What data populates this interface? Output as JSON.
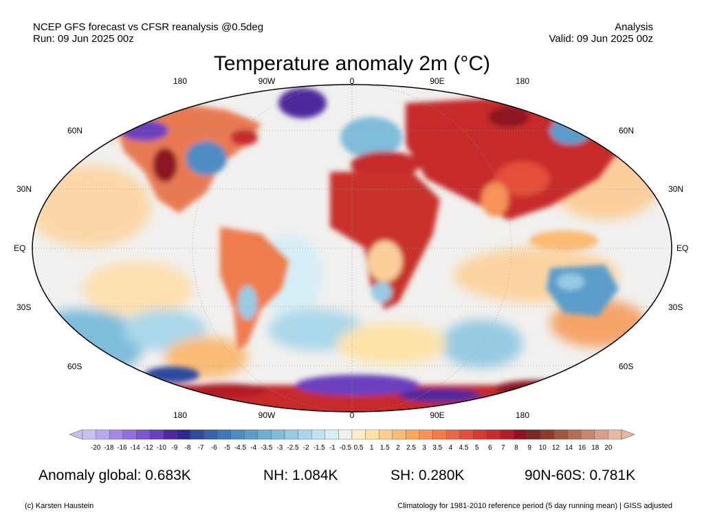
{
  "header": {
    "source": "NCEP GFS forecast vs CFSR reanalysis @0.5deg",
    "run": "Run: 09 Jun 2025 00z",
    "kind": "Analysis",
    "valid": "Valid: 09 Jun 2025 00z"
  },
  "title": "Temperature anomaly 2m (°C)",
  "axes": {
    "top_lon": [
      "180",
      "90W",
      "0",
      "90E",
      "180"
    ],
    "bottom_lon": [
      "180",
      "90W",
      "0",
      "90E",
      "180"
    ],
    "left_lat": [
      "60N",
      "30N",
      "EQ",
      "30S",
      "60S"
    ],
    "right_lat": [
      "60N",
      "30N",
      "EQ",
      "30S",
      "60S"
    ]
  },
  "colorbar": {
    "labels": [
      "-20",
      "-18",
      "-16",
      "-14",
      "-12",
      "-10",
      "-9",
      "-8",
      "-7",
      "-6",
      "-5",
      "-4.5",
      "-4",
      "-3.5",
      "-3",
      "-2.5",
      "-2",
      "-1.5",
      "-1",
      "-0.5",
      "0.5",
      "1",
      "1.5",
      "2",
      "2.5",
      "3",
      "3.5",
      "4",
      "4.5",
      "5",
      "6",
      "7",
      "8",
      "9",
      "10",
      "12",
      "14",
      "16",
      "18",
      "20"
    ],
    "colors": [
      "#c7c2f2",
      "#b8a9ee",
      "#a48ae6",
      "#9070dc",
      "#7c56cf",
      "#6a3fbf",
      "#4e2a9c",
      "#2c2a8c",
      "#2f4a9c",
      "#3762ad",
      "#3f78b9",
      "#4d8cc3",
      "#5a9dcb",
      "#6aaed3",
      "#7fbddb",
      "#96cbe3",
      "#aad7ea",
      "#bfe3f0",
      "#d6eef6",
      "#f0f0f0",
      "#fdf0c8",
      "#fde3a8",
      "#fcd08c",
      "#fbbb74",
      "#f9a862",
      "#f69356",
      "#f27d4b",
      "#ec6642",
      "#e34f3a",
      "#d53b32",
      "#c62c2c",
      "#b01f26",
      "#8d1420",
      "#7a2a20",
      "#8e3b2c",
      "#a0553f",
      "#b56e55",
      "#c8876b",
      "#d89f85",
      "#e8b8a0"
    ]
  },
  "stats": {
    "global": "Anomaly global: 0.683K",
    "nh": "NH: 1.084K",
    "sh": "SH: 0.280K",
    "arctic": "90N-60S: 0.781K"
  },
  "footer": {
    "credit": "(c) Karsten Haustein",
    "climatology": "Climatology for 1981-2010 reference period (5 day running mean) | GISS adjusted"
  }
}
